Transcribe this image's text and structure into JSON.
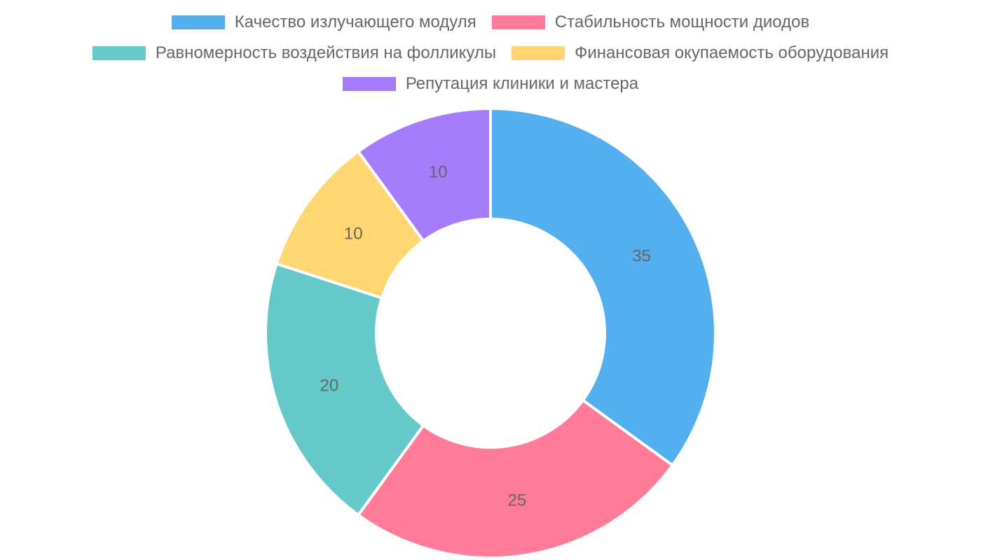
{
  "chart_data": {
    "type": "pie",
    "variant": "doughnut",
    "legend_position": "top",
    "categories": [
      "Качество излучающего модуля",
      "Стабильность мощности диодов",
      "Равномерность воздействия на фолликулы",
      "Финансовая окупаемость оборудования",
      "Репутация клиники и мастера"
    ],
    "values": [
      35,
      25,
      20,
      10,
      10
    ],
    "value_labels": [
      "35",
      "25",
      "20",
      "10",
      "10"
    ],
    "colors": [
      "#54AFEF",
      "#FF7B97",
      "#66C9C9",
      "#FFD672",
      "#A67CFF"
    ]
  }
}
